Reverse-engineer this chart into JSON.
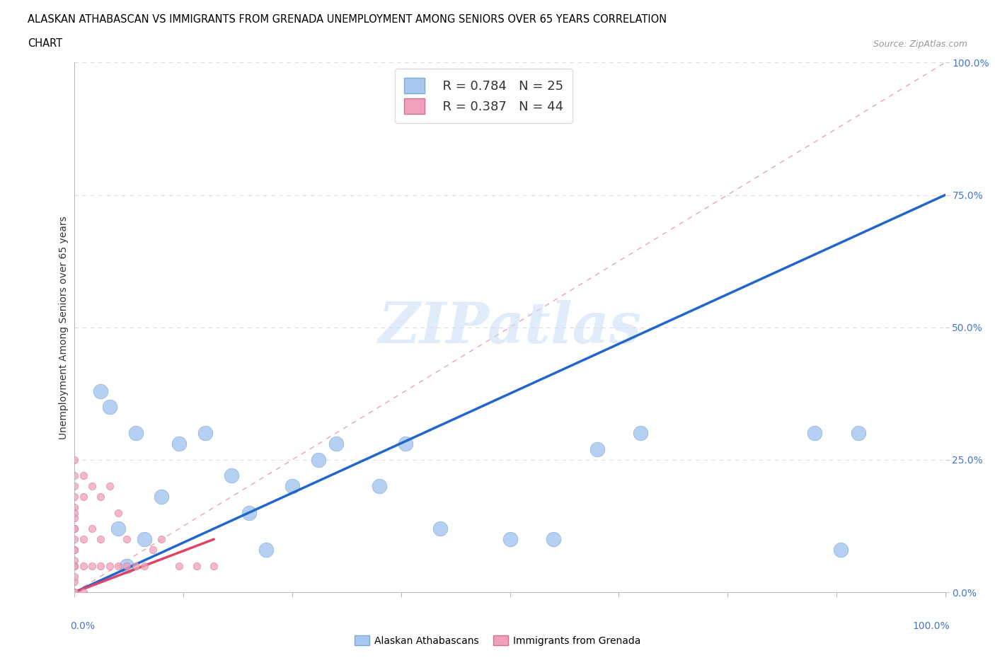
{
  "title_line1": "ALASKAN ATHABASCAN VS IMMIGRANTS FROM GRENADA UNEMPLOYMENT AMONG SENIORS OVER 65 YEARS CORRELATION",
  "title_line2": "CHART",
  "source": "Source: ZipAtlas.com",
  "ylabel": "Unemployment Among Seniors over 65 years",
  "right_yticks": [
    0.0,
    25.0,
    50.0,
    75.0,
    100.0
  ],
  "legend_label1": "Alaskan Athabascans",
  "legend_label2": "Immigrants from Grenada",
  "blue_color": "#a8c8f0",
  "blue_edge_color": "#7aaad0",
  "pink_color": "#f0a0b8",
  "pink_edge_color": "#d07090",
  "blue_line_color": "#2266cc",
  "pink_line_color": "#dd4466",
  "ref_line_color": "#f0a0b8",
  "grid_color": "#dddddd",
  "watermark": "ZIPatlas",
  "blue_R": 0.784,
  "blue_N": 25,
  "pink_R": 0.387,
  "pink_N": 44,
  "blue_scatter_x": [
    3,
    4,
    7,
    10,
    12,
    15,
    18,
    20,
    22,
    25,
    28,
    30,
    35,
    38,
    42,
    50,
    55,
    60,
    65,
    85,
    88,
    6,
    5,
    8,
    90
  ],
  "blue_scatter_y": [
    38,
    35,
    30,
    18,
    28,
    30,
    22,
    15,
    8,
    20,
    25,
    28,
    20,
    28,
    12,
    10,
    10,
    27,
    30,
    30,
    8,
    5,
    12,
    10,
    30
  ],
  "blue_scatter_sizes": [
    200,
    200,
    200,
    200,
    200,
    200,
    200,
    200,
    200,
    200,
    200,
    200,
    200,
    200,
    200,
    200,
    200,
    200,
    200,
    200,
    200,
    200,
    200,
    200,
    200
  ],
  "pink_scatter_x": [
    0,
    0,
    0,
    0,
    0,
    0,
    0,
    0,
    0,
    0,
    0,
    0,
    0,
    0,
    0,
    0,
    0,
    0,
    0,
    0,
    1,
    1,
    1,
    1,
    1,
    2,
    2,
    2,
    3,
    3,
    3,
    4,
    4,
    5,
    5,
    6,
    6,
    7,
    8,
    9,
    10,
    12,
    14,
    16
  ],
  "pink_scatter_y": [
    0,
    0,
    0,
    2,
    3,
    5,
    6,
    8,
    10,
    12,
    14,
    16,
    18,
    20,
    22,
    5,
    8,
    12,
    15,
    25,
    0,
    5,
    10,
    18,
    22,
    5,
    12,
    20,
    5,
    10,
    18,
    5,
    20,
    5,
    15,
    5,
    10,
    5,
    5,
    8,
    10,
    5,
    5,
    5
  ],
  "blue_line_x": [
    0,
    100
  ],
  "blue_line_y": [
    0,
    75
  ],
  "pink_line_x": [
    0,
    16
  ],
  "pink_line_y": [
    0,
    10
  ],
  "ref_line_x": [
    0,
    100
  ],
  "ref_line_y": [
    0,
    100
  ],
  "xlim": [
    0,
    100
  ],
  "ylim": [
    0,
    100
  ],
  "background_color": "#ffffff",
  "label_color": "#4477cc",
  "xtick_positions": [
    0,
    12.5,
    25,
    37.5,
    50,
    62.5,
    75,
    87.5,
    100
  ]
}
